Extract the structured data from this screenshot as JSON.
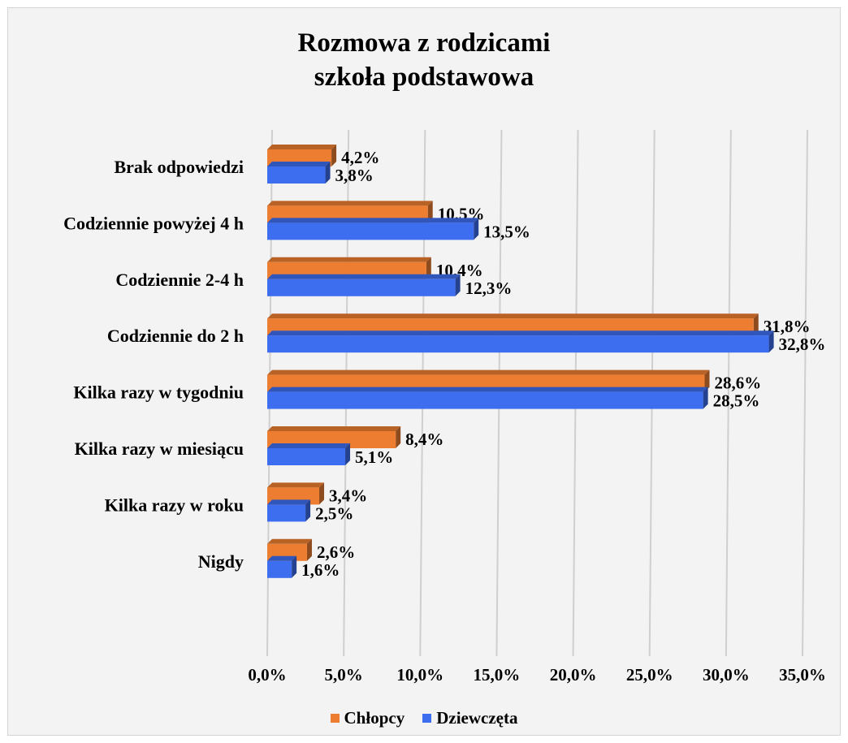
{
  "chart_data": {
    "type": "bar",
    "orientation": "horizontal",
    "title": "Rozmowa z rodzicami",
    "subtitle": "szkoła podstawowa",
    "categories": [
      "Brak odpowiedzi",
      "Codziennie powyżej 4 h",
      "Codziennie 2-4 h",
      "Codziennie do 2 h",
      "Kilka razy w tygodniu",
      "Kilka razy w miesiącu",
      "Kilka razy w roku",
      "Nigdy"
    ],
    "series": [
      {
        "name": "Chłopcy",
        "color": "#ed7d31",
        "values": [
          4.2,
          10.5,
          10.4,
          31.8,
          28.6,
          8.4,
          3.4,
          2.6
        ],
        "labels": [
          "4,2%",
          "10,5%",
          "10,4%",
          "31,8%",
          "28,6%",
          "8,4%",
          "3,4%",
          "2,6%"
        ]
      },
      {
        "name": "Dziewczęta",
        "color": "#3d6ef0",
        "values": [
          3.8,
          13.5,
          12.3,
          32.8,
          28.5,
          5.1,
          2.5,
          1.6
        ],
        "labels": [
          "3,8%",
          "13,5%",
          "12,3%",
          "32,8%",
          "28,5%",
          "5,1%",
          "2,5%",
          "1,6%"
        ]
      }
    ],
    "x_ticks": [
      "0,0%",
      "5,0%",
      "10,0%",
      "15,0%",
      "20,0%",
      "25,0%",
      "30,0%",
      "35,0%"
    ],
    "xlim": [
      0,
      35
    ],
    "grid": true,
    "legend_position": "bottom",
    "style": "3d-bar"
  }
}
